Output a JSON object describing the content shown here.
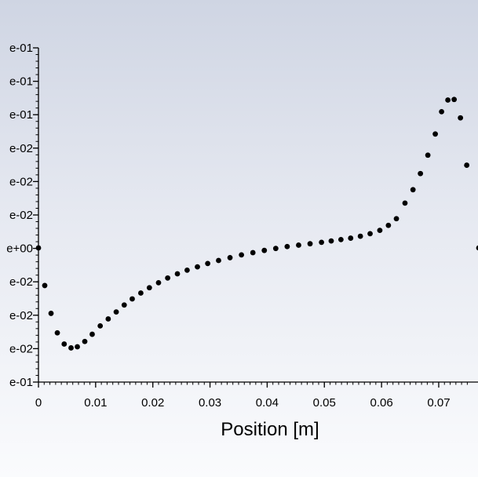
{
  "chart_data": {
    "type": "scatter",
    "title": "",
    "xlabel": "Position [m]",
    "ylabel": "",
    "xlim": [
      0,
      0.075
    ],
    "x_ticks": [
      "0",
      "0.01",
      "0.02",
      "0.03",
      "0.04",
      "0.05",
      "0.06",
      "0.07"
    ],
    "y_tick_labels": [
      "e-01",
      "e-01",
      "e-01",
      "e-02",
      "e-02",
      "e-02",
      "e+00",
      "e-02",
      "e-02",
      "e-02",
      "e-01"
    ],
    "marker_color": "#000000",
    "grid": false,
    "series": [
      {
        "x": [
          0.0,
          0.0011,
          0.0022,
          0.0033,
          0.0045,
          0.0057,
          0.0068,
          0.0081,
          0.0094,
          0.0108,
          0.0122,
          0.0136,
          0.015,
          0.0164,
          0.0179,
          0.0194,
          0.021,
          0.0226,
          0.0243,
          0.026,
          0.0278,
          0.0296,
          0.0315,
          0.0335,
          0.0355,
          0.0375,
          0.0395,
          0.0415,
          0.0435,
          0.0455,
          0.0475,
          0.0495,
          0.0512,
          0.0529,
          0.0546,
          0.0563,
          0.058,
          0.0597,
          0.0612,
          0.0626,
          0.0641,
          0.0655,
          0.0668,
          0.0681,
          0.0694,
          0.0705,
          0.0716,
          0.0727,
          0.0738,
          0.0749
        ],
        "y": [
          0.0,
          -0.0675,
          -0.1175,
          -0.1525,
          -0.1725,
          -0.1795,
          -0.1775,
          -0.168,
          -0.155,
          -0.14,
          -0.1275,
          -0.115,
          -0.1025,
          -0.0915,
          -0.081,
          -0.0715,
          -0.0625,
          -0.054,
          -0.0465,
          -0.04,
          -0.034,
          -0.028,
          -0.0225,
          -0.0175,
          -0.0125,
          -0.0085,
          -0.0045,
          -0.001,
          0.0025,
          0.005,
          0.0075,
          0.01,
          0.0125,
          0.015,
          0.0175,
          0.021,
          0.0255,
          0.0315,
          0.0405,
          0.0525,
          0.0805,
          0.1045,
          0.1335,
          0.1665,
          0.2045,
          0.2445,
          0.2655,
          0.2665,
          0.2335,
          0.1485
        ]
      }
    ]
  }
}
